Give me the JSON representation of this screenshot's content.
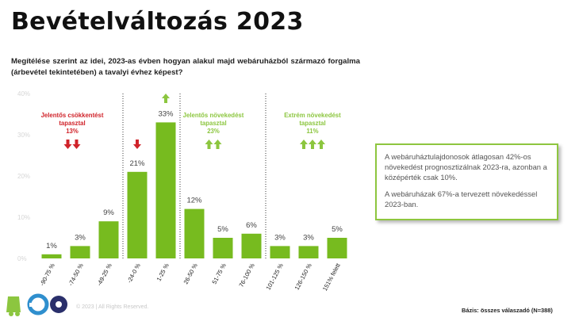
{
  "title": "Bevételváltozás 2023",
  "question": "Megítélése szerint az idei, 2023-as évben hogyan alakul majd webáruházból származó forgalma (árbevétel tekintetében) a tavalyi évhez képest?",
  "callout": {
    "line1": "A webáruháztulajdonosok átlagosan 42%-os növekedést prognosztizálnak 2023-ra, azonban a középérték csak 10%.",
    "line2": "A webáruházak 67%-a tervezett növekedéssel 2023-ban."
  },
  "footer": {
    "copyright": "© 2023 | All Rights Reserved.",
    "base": "Bázis: összes válaszadó (N=388)"
  },
  "colors": {
    "bar": "#77bb1f",
    "down": "#d0232a",
    "up": "#8cc63f",
    "border": "#8ec63f"
  },
  "chart_data": {
    "type": "bar",
    "categories": [
      "-90-75 %",
      "-74-50 %",
      "-49-25 %",
      "-24-0 %",
      "1-25 %",
      "26-50 %",
      "51-75 %",
      "76-100 %",
      "101-125 %",
      "126-150 %",
      "151% felett"
    ],
    "values": [
      1,
      3,
      9,
      21,
      33,
      12,
      5,
      6,
      3,
      3,
      5
    ],
    "data_labels": [
      "1%",
      "3%",
      "9%",
      "21%",
      "33%",
      "12%",
      "5%",
      "6%",
      "3%",
      "3%",
      "5%"
    ],
    "ylim": [
      0,
      40
    ],
    "yticks": [
      "0%",
      "10%",
      "20%",
      "30%",
      "40%"
    ],
    "ytick_values": [
      0,
      10,
      20,
      30,
      40
    ],
    "groups": [
      {
        "label": "Jelentős csökkentést tapasztal",
        "line1": "Jelentős csökkentést",
        "line2": "tapasztal",
        "value": "13%",
        "direction": "down",
        "arrows": 2
      },
      {
        "label": "",
        "line1": "",
        "line2": "",
        "value": "",
        "direction": "down",
        "arrows": 1
      },
      {
        "label": "",
        "line1": "",
        "line2": "",
        "value": "",
        "direction": "up",
        "arrows": 1
      },
      {
        "label": "Jelentős növekedést tapasztal",
        "line1": "Jelentős növekedést",
        "line2": "tapasztal",
        "value": "23%",
        "direction": "up",
        "arrows": 2
      },
      {
        "label": "Extrém növekedést tapasztal",
        "line1": "Extrém növekedést",
        "line2": "tapasztal",
        "value": "11%",
        "direction": "up",
        "arrows": 3
      }
    ]
  }
}
